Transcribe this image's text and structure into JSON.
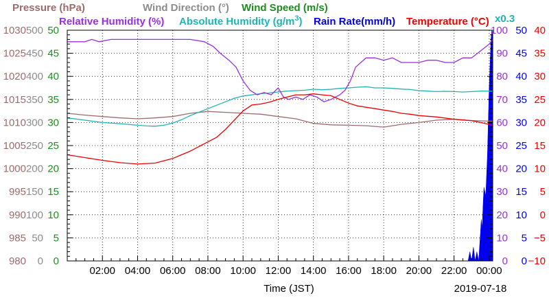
{
  "chart_data": {
    "type": "line",
    "legend": {
      "row1": [
        {
          "label": "Pressure (hPa)",
          "color": "#9d6b6b"
        },
        {
          "label": "Wind Direction (°)",
          "color": "#8c8c8c"
        },
        {
          "label": "Wind Speed (m/s)",
          "color": "#1e8c1e"
        }
      ],
      "row2": [
        {
          "label": "Relative Humidity (%)",
          "color": "#9a2fe0"
        },
        {
          "label": "Absolute Humidity (g/m",
          "sup": "3",
          "suffix": ")",
          "color": "#1eb4b4"
        },
        {
          "label": "Rain Rate(mm/h)",
          "color": "#0000ee"
        },
        {
          "label": "Temperature (°C)",
          "color": "#ee0000"
        }
      ],
      "multiplier": "x0.3"
    },
    "xlabel": "Time (JST)",
    "date": "2019-07-18",
    "x_tick_labels": [
      "02:00",
      "04:00",
      "06:00",
      "08:00",
      "10:00",
      "12:00",
      "14:00",
      "16:00",
      "18:00",
      "20:00",
      "22:00",
      "00:00"
    ],
    "axes": {
      "pressure": {
        "color": "#9d6b6b",
        "range": [
          980,
          1030
        ],
        "ticks": [
          "980",
          "985",
          "990",
          "995",
          "1000",
          "1005",
          "1010",
          "1015",
          "1020",
          "1025",
          "1030"
        ]
      },
      "wind_direction": {
        "color": "#8c8c8c",
        "range": [
          0,
          500
        ],
        "ticks": [
          "0",
          "50",
          "100",
          "150",
          "200",
          "250",
          "300",
          "350",
          "400",
          "450",
          "500"
        ]
      },
      "wind_speed": {
        "color": "#1e8c1e",
        "range": [
          0,
          50
        ],
        "ticks": [
          "0",
          "5",
          "10",
          "15",
          "20",
          "25",
          "30",
          "35",
          "40",
          "45",
          "50"
        ]
      },
      "relative_humidity": {
        "color": "#9a2fe0",
        "range": [
          0,
          100
        ],
        "ticks": [
          "0",
          "10",
          "20",
          "30",
          "40",
          "50",
          "60",
          "70",
          "80",
          "90",
          "100"
        ]
      },
      "rain_rate": {
        "color": "#0000ee",
        "range": [
          0,
          50
        ],
        "ticks": [
          "0",
          "5",
          "10",
          "15",
          "20",
          "25",
          "30",
          "35",
          "40",
          "45",
          "50"
        ]
      },
      "temperature": {
        "color": "#ee0000",
        "range": [
          -10,
          40
        ],
        "ticks": [
          "−10",
          "−5",
          "0",
          "5",
          "10",
          "15",
          "20",
          "25",
          "30",
          "35",
          "40"
        ]
      }
    },
    "x_range_hours": [
      0,
      24.2
    ],
    "grid": true,
    "series": [
      {
        "name": "Relative Humidity (%)",
        "axis": "relative_humidity",
        "color": "#9a2fe0",
        "x": [
          0,
          1,
          1.4,
          1.8,
          2.5,
          4,
          6,
          7,
          7.8,
          8.3,
          8.7,
          9.2,
          9.6,
          10,
          10.4,
          10.8,
          11.2,
          11.6,
          12,
          12.3,
          12.6,
          13,
          13.4,
          13.8,
          14.2,
          14.6,
          15,
          15.5,
          15.8,
          16.1,
          16.4,
          16.7,
          17,
          17.5,
          18,
          18.5,
          19,
          19.5,
          20,
          20.5,
          21,
          21.5,
          22,
          22.5,
          23,
          23.5,
          24,
          24.2
        ],
        "y": [
          95,
          95,
          96,
          95,
          96,
          96,
          96,
          96,
          95,
          93,
          90,
          87,
          84,
          78,
          74,
          72,
          73,
          72,
          75,
          71,
          70,
          71,
          70,
          72,
          71,
          69,
          70,
          72,
          74,
          78,
          84,
          86,
          88,
          88,
          87,
          88,
          86,
          86,
          86,
          87,
          87,
          86,
          86,
          88,
          88,
          91,
          94,
          96
        ]
      },
      {
        "name": "Absolute Humidity (g/m3)",
        "axis": "relative_humidity",
        "color": "#1eb4b4",
        "x": [
          0,
          1,
          2,
          3,
          4,
          4.5,
          5,
          5.5,
          6,
          6.5,
          7,
          7.5,
          8,
          8.5,
          9,
          9.5,
          10,
          10.5,
          11,
          11.5,
          12,
          12.5,
          13,
          13.5,
          14,
          14.5,
          15,
          15.5,
          16,
          16.5,
          17,
          17.5,
          18,
          18.5,
          19,
          19.5,
          20,
          20.5,
          21,
          21.5,
          22,
          22.5,
          23,
          23.5,
          24,
          24.2
        ],
        "y": [
          62,
          61,
          60,
          59.5,
          58.8,
          58.5,
          58.4,
          58.8,
          59.8,
          61.2,
          63,
          64.5,
          66,
          67.5,
          69,
          70.5,
          71.5,
          72,
          72.5,
          72.8,
          73.2,
          73.6,
          73.8,
          74,
          74.4,
          74.2,
          74.4,
          74.8,
          75,
          75.3,
          75.5,
          75,
          75,
          74.8,
          74.5,
          74.3,
          73.8,
          73.6,
          73.4,
          73.5,
          73.4,
          73.2,
          73.4,
          73.6,
          73.6,
          73.6
        ]
      },
      {
        "name": "Temperature (°C)",
        "axis": "temperature",
        "color": "#ee0000",
        "x": [
          0,
          1,
          2,
          3,
          4,
          5,
          6,
          6.5,
          7,
          7.5,
          8,
          8.5,
          9,
          9.5,
          10,
          10.5,
          11,
          11.5,
          12,
          12.5,
          13,
          13.5,
          14,
          14.5,
          15,
          15.5,
          16,
          16.5,
          17,
          17.5,
          18,
          18.5,
          19,
          19.5,
          20,
          21,
          22,
          23,
          23.5,
          24,
          24.2
        ],
        "y": [
          13,
          12.4,
          11.8,
          11.3,
          11,
          11.2,
          12.2,
          13,
          13.8,
          14.8,
          15.8,
          16.8,
          18.5,
          20.5,
          22.5,
          23.8,
          24,
          24.4,
          25,
          25.5,
          26,
          26,
          26.2,
          26,
          25.8,
          25,
          24.2,
          23.6,
          23.3,
          23,
          22.7,
          22.4,
          22,
          21.8,
          21.5,
          21.2,
          20.7,
          20.4,
          20,
          19.6,
          19.4
        ]
      },
      {
        "name": "Pressure (hPa)",
        "axis": "pressure",
        "color": "#9d6b6b",
        "x": [
          0,
          1,
          2,
          3,
          4,
          5,
          6,
          7,
          8,
          9,
          10,
          11,
          12,
          13,
          14,
          15,
          16,
          17,
          18,
          19,
          20,
          21,
          22,
          23,
          24,
          24.2
        ],
        "y": [
          1012,
          1011.6,
          1011.3,
          1011,
          1010.8,
          1011,
          1011.3,
          1012,
          1012.4,
          1012.2,
          1012,
          1011.8,
          1011.3,
          1010.8,
          1009.8,
          1009.5,
          1009.4,
          1009.3,
          1009,
          1009.6,
          1010,
          1010.5,
          1010.7,
          1010.4,
          1010.3,
          1010.3
        ]
      },
      {
        "name": "Rain Rate(mm/h)",
        "axis": "rain_rate",
        "type": "area",
        "color": "#0000ee",
        "x": [
          0,
          22.8,
          22.9,
          23.0,
          23.1,
          23.2,
          23.3,
          23.4,
          23.5,
          23.55,
          23.6,
          23.65,
          23.7,
          23.8,
          23.9,
          24.0,
          24.05,
          24.1,
          24.15,
          24.2
        ],
        "y": [
          0,
          0,
          2,
          0,
          3,
          0,
          2,
          0,
          6,
          9,
          7,
          12,
          16,
          14,
          23,
          38,
          43,
          48,
          50,
          48
        ]
      }
    ]
  }
}
